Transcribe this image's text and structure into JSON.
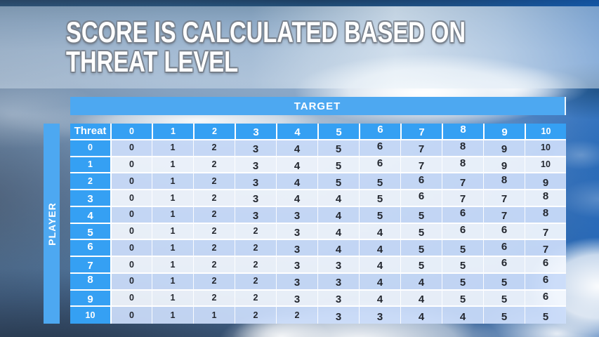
{
  "slide": {
    "title_lines": [
      "SCORE IS CALCULATED BASED ON",
      "THREAT LEVEL"
    ]
  },
  "table": {
    "target_label": "TARGET",
    "player_label": "PLAYER",
    "corner_label": "Threat",
    "column_headers": [
      "0",
      "1",
      "2",
      "3",
      "4",
      "5",
      "6",
      "7",
      "8",
      "9",
      "10"
    ],
    "rows": [
      {
        "threat": "0",
        "values": [
          "0",
          "1",
          "2",
          "3",
          "4",
          "5",
          "6",
          "7",
          "8",
          "9",
          "10"
        ]
      },
      {
        "threat": "1",
        "values": [
          "0",
          "1",
          "2",
          "3",
          "4",
          "5",
          "6",
          "7",
          "8",
          "9",
          "10"
        ]
      },
      {
        "threat": "2",
        "values": [
          "0",
          "1",
          "2",
          "3",
          "4",
          "5",
          "5",
          "6",
          "7",
          "8",
          "9"
        ]
      },
      {
        "threat": "3",
        "values": [
          "0",
          "1",
          "2",
          "3",
          "4",
          "4",
          "5",
          "6",
          "7",
          "7",
          "8"
        ]
      },
      {
        "threat": "4",
        "values": [
          "0",
          "1",
          "2",
          "3",
          "3",
          "4",
          "5",
          "5",
          "6",
          "7",
          "8"
        ]
      },
      {
        "threat": "5",
        "values": [
          "0",
          "1",
          "2",
          "2",
          "3",
          "4",
          "4",
          "5",
          "6",
          "6",
          "7"
        ]
      },
      {
        "threat": "6",
        "values": [
          "0",
          "1",
          "2",
          "2",
          "3",
          "4",
          "4",
          "5",
          "5",
          "6",
          "7"
        ]
      },
      {
        "threat": "7",
        "values": [
          "0",
          "1",
          "2",
          "2",
          "3",
          "3",
          "4",
          "5",
          "5",
          "6",
          "6"
        ]
      },
      {
        "threat": "8",
        "values": [
          "0",
          "1",
          "2",
          "2",
          "3",
          "3",
          "4",
          "4",
          "5",
          "5",
          "6"
        ]
      },
      {
        "threat": "9",
        "values": [
          "0",
          "1",
          "2",
          "2",
          "3",
          "3",
          "4",
          "4",
          "5",
          "5",
          "6"
        ]
      },
      {
        "threat": "10",
        "values": [
          "0",
          "1",
          "1",
          "2",
          "2",
          "3",
          "3",
          "4",
          "4",
          "5",
          "5"
        ]
      }
    ]
  },
  "colors": {
    "bar_blue": "#4da8f1",
    "header_blue": "#35a0f3",
    "row_even": "#cbddfa",
    "row_odd": "#f3f7fe",
    "data_text": "#23272f",
    "title_text": "#ffffff"
  }
}
